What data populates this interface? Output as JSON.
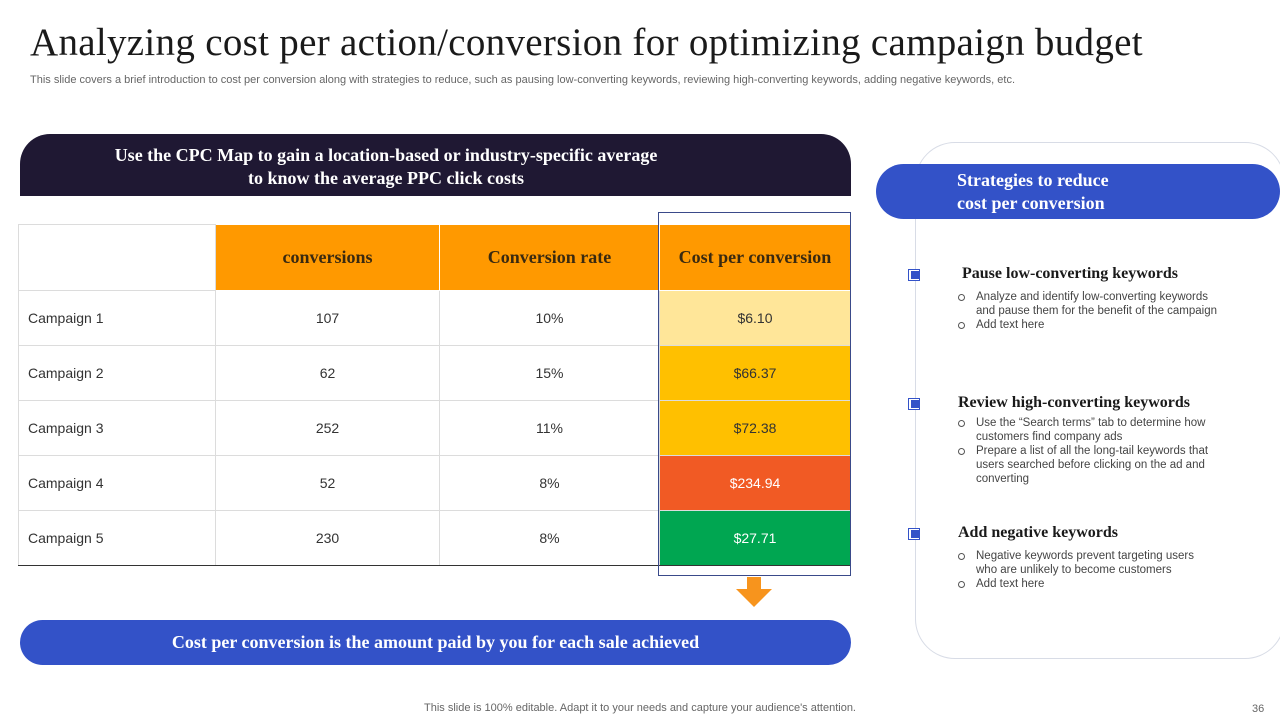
{
  "header": {
    "title": "Analyzing cost per action/conversion for optimizing campaign budget",
    "subtitle": "This slide covers a brief introduction to cost per conversion along with strategies to reduce, such as pausing low-converting keywords, reviewing high-converting keywords, adding negative keywords, etc."
  },
  "banner": {
    "text": "Use the CPC Map to gain a location-based or industry-specific average to know the average PPC click costs"
  },
  "table": {
    "headers": [
      "conversions",
      "Conversion rate",
      "Cost per conversion"
    ],
    "rows": [
      {
        "name": "Campaign 1",
        "conversions": "107",
        "rate": "10%",
        "cost": "$6.10",
        "cost_color": "#ffe699"
      },
      {
        "name": "Campaign 2",
        "conversions": "62",
        "rate": "15%",
        "cost": "$66.37",
        "cost_color": "#ffc000"
      },
      {
        "name": "Campaign 3",
        "conversions": "252",
        "rate": "11%",
        "cost": "$72.38",
        "cost_color": "#ffc000"
      },
      {
        "name": "Campaign 4",
        "conversions": "52",
        "rate": "8%",
        "cost": "$234.94",
        "cost_color": "#f15a24"
      },
      {
        "name": "Campaign 5",
        "conversions": "230",
        "rate": "8%",
        "cost": "$27.71",
        "cost_color": "#00a651"
      }
    ]
  },
  "bottom_pill": {
    "text": "Cost per conversion is the amount paid by you for each sale achieved"
  },
  "strategies": {
    "header_line1": "Strategies to reduce",
    "header_line2": "cost per conversion",
    "items": [
      {
        "title": "Pause low-converting keywords",
        "bullets": [
          "Analyze  and identify low-converting keywords and pause them for the benefit of the campaign",
          "Add text here"
        ]
      },
      {
        "title": "Review high-converting keywords",
        "bullets": [
          "Use the “Search terms” tab to determine how customers find company ads",
          "Prepare a list of all the long-tail keywords that users searched before clicking on the ad and converting"
        ]
      },
      {
        "title": "Add negative keywords",
        "bullets": [
          "Negative keywords prevent targeting users who are unlikely to become customers",
          "Add text here"
        ]
      }
    ]
  },
  "footer": {
    "note": "This slide is 100% editable. Adapt it to your needs and capture your audience's attention.",
    "page_number": "36"
  },
  "colors": {
    "navy": "#1f1833",
    "blue": "#3352c8",
    "orange": "#ff9900"
  }
}
